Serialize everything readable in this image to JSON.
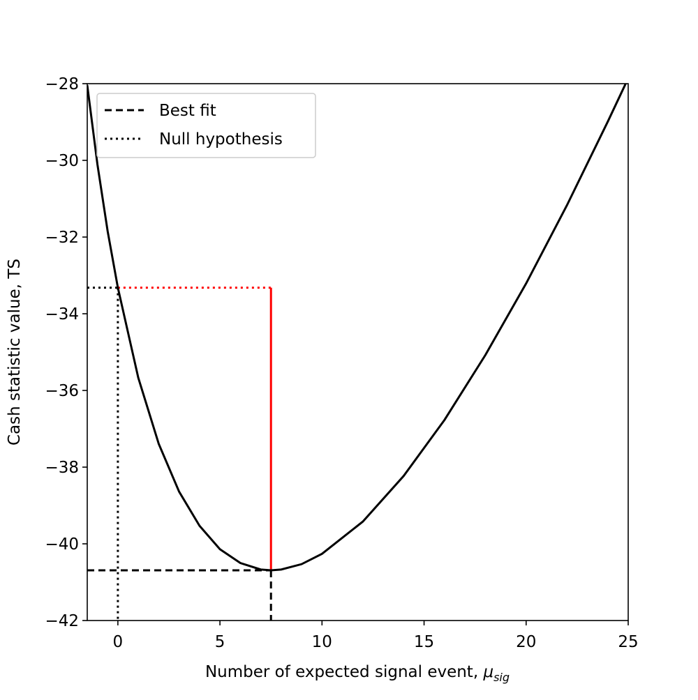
{
  "chart_data": {
    "type": "line",
    "xlabel": "Number of expected signal event,",
    "xlabel_symbol": "μ",
    "xlabel_subscript": "sig",
    "ylabel": "Cash statistic value, TS",
    "x": [
      -1.5,
      -1,
      -0.5,
      0,
      1,
      2,
      3,
      4,
      5,
      6,
      7,
      7.5,
      8,
      9,
      10,
      12,
      14,
      16,
      18,
      20,
      22,
      24,
      25
    ],
    "series": [
      {
        "color": "#000000",
        "values": [
          -28.04,
          -30.11,
          -31.85,
          -33.32,
          -35.67,
          -37.39,
          -38.64,
          -39.53,
          -40.14,
          -40.5,
          -40.67,
          -40.69,
          -40.67,
          -40.53,
          -40.26,
          -39.42,
          -38.23,
          -36.77,
          -35.08,
          -33.21,
          -31.17,
          -28.99,
          -27.86
        ]
      }
    ],
    "best_fit": {
      "name": "Best fit",
      "x": 7.5,
      "y": -40.69,
      "color": "#000000",
      "style": "dashed"
    },
    "null_hypothesis": {
      "name": "Null hypothesis",
      "x": 0,
      "y": -33.32,
      "color": "#000000",
      "style": "dotted"
    },
    "difference_color": "#ff0000",
    "xlim": [
      -1.5,
      25
    ],
    "ylim": [
      -42,
      -28
    ],
    "xticks": [
      0,
      5,
      10,
      15,
      20,
      25
    ],
    "yticks": [
      {
        "value": -42,
        "label": "−42"
      },
      {
        "value": -40,
        "label": "−40"
      },
      {
        "value": -38,
        "label": "−38"
      },
      {
        "value": -36,
        "label": "−36"
      },
      {
        "value": -34,
        "label": "−34"
      },
      {
        "value": -32,
        "label": "−32"
      },
      {
        "value": -30,
        "label": "−30"
      },
      {
        "value": -28,
        "label": "−28"
      }
    ],
    "legend": "upper left"
  }
}
